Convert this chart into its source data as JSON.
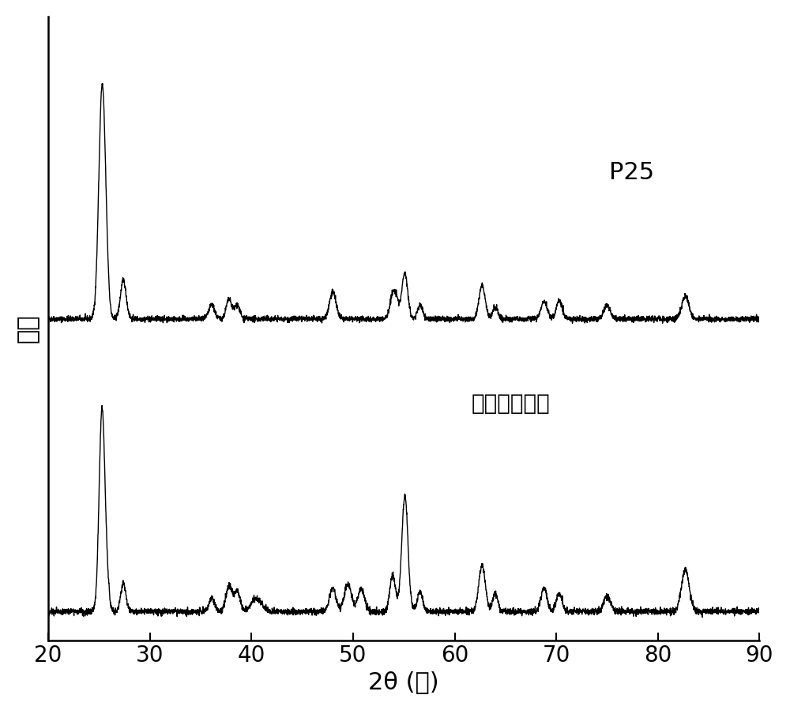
{
  "xlabel": "2θ (度)",
  "ylabel": "强度",
  "label_p25": "P25",
  "label_meso": "介孔二氧化馒",
  "xmin": 20,
  "xmax": 90,
  "axis_fontsize": 22,
  "tick_fontsize": 20,
  "annotation_fontsize": 22,
  "background_color": "#ffffff",
  "line_color": "#000000",
  "xticks": [
    20,
    30,
    40,
    50,
    60,
    70,
    80,
    90
  ]
}
